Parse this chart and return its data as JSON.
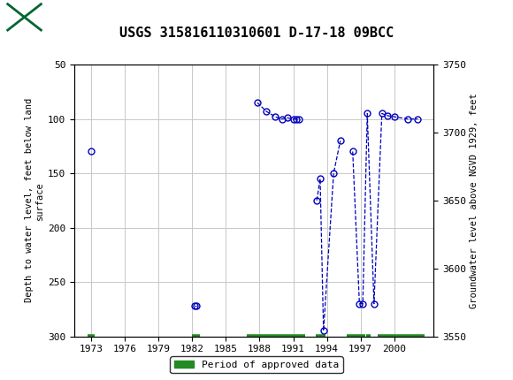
{
  "title": "USGS 315816110310601 D-17-18 09BCC",
  "ylabel_left": "Depth to water level, feet below land\nsurface",
  "ylabel_right": "Groundwater level above NGVD 1929, feet",
  "ylim_left": [
    50,
    300
  ],
  "ylim_right": [
    3550,
    3750
  ],
  "xlim": [
    1971.5,
    2003.5
  ],
  "xticks": [
    1973,
    1976,
    1979,
    1982,
    1985,
    1988,
    1991,
    1994,
    1997,
    2000
  ],
  "yticks_left": [
    50,
    100,
    150,
    200,
    250,
    300
  ],
  "yticks_right": [
    3550,
    3600,
    3650,
    3700,
    3750
  ],
  "segments": [
    [
      [
        1973.0
      ],
      [
        130
      ]
    ],
    [
      [
        1982.2,
        1982.4
      ],
      [
        272,
        272
      ]
    ],
    [
      [
        1987.8,
        1988.6,
        1989.4,
        1990.0,
        1990.5,
        1991.0,
        1991.3,
        1991.5
      ],
      [
        85,
        93,
        98,
        100,
        99,
        100,
        100,
        100
      ]
    ],
    [
      [
        1993.1,
        1993.4,
        1993.7
      ],
      [
        175,
        155,
        295
      ]
    ],
    [
      [
        1993.7,
        1994.6,
        1995.2
      ],
      [
        295,
        150,
        120
      ]
    ],
    [
      [
        1996.3,
        1996.9,
        1997.2
      ],
      [
        130,
        270,
        270
      ]
    ],
    [
      [
        1997.2,
        1997.6,
        1998.2,
        1998.9,
        1999.4,
        2000.0,
        2001.2,
        2002.1
      ],
      [
        270,
        95,
        270,
        95,
        97,
        98,
        100,
        100
      ]
    ]
  ],
  "isolated_points": [
    [
      1973.0,
      130
    ],
    [
      1982.2,
      272
    ],
    [
      1982.4,
      272
    ],
    [
      1987.8,
      85
    ],
    [
      1988.6,
      93
    ],
    [
      1989.4,
      98
    ],
    [
      1990.0,
      100
    ],
    [
      1990.5,
      99
    ],
    [
      1991.0,
      100
    ],
    [
      1991.3,
      100
    ],
    [
      1991.5,
      100
    ],
    [
      1993.1,
      175
    ],
    [
      1993.4,
      155
    ],
    [
      1993.7,
      295
    ],
    [
      1994.6,
      150
    ],
    [
      1995.2,
      120
    ],
    [
      1996.3,
      130
    ],
    [
      1996.9,
      270
    ],
    [
      1997.2,
      270
    ],
    [
      1997.6,
      95
    ],
    [
      1998.2,
      270
    ],
    [
      1998.9,
      95
    ],
    [
      1999.4,
      97
    ],
    [
      2000.0,
      98
    ],
    [
      2001.2,
      100
    ],
    [
      2002.1,
      100
    ]
  ],
  "line_segments_x": [
    [
      1982.2,
      1982.4
    ],
    [
      1987.8,
      1988.6,
      1989.4,
      1990.0,
      1990.5,
      1991.0,
      1991.3,
      1991.5
    ],
    [
      1993.1,
      1993.4,
      1993.7,
      1994.6,
      1995.2
    ],
    [
      1996.3,
      1996.9,
      1997.2,
      1997.6,
      1998.2,
      1998.9,
      1999.4,
      2000.0,
      2001.2,
      2002.1
    ]
  ],
  "line_segments_y": [
    [
      272,
      272
    ],
    [
      85,
      93,
      98,
      100,
      99,
      100,
      100,
      100
    ],
    [
      175,
      155,
      295,
      150,
      120
    ],
    [
      130,
      270,
      270,
      95,
      270,
      95,
      97,
      98,
      100,
      100
    ]
  ],
  "line_color": "#0000BB",
  "marker_color": "#0000BB",
  "marker_size": 5,
  "approved_periods_x": [
    [
      1972.7,
      1973.3
    ],
    [
      1982.0,
      1982.7
    ],
    [
      1986.9,
      1992.1
    ],
    [
      1993.0,
      1993.9
    ],
    [
      1995.8,
      1997.4
    ],
    [
      1997.5,
      1997.9
    ],
    [
      1998.5,
      2002.7
    ]
  ],
  "approved_y": 300,
  "approved_color": "#228B22",
  "background_color": "#ffffff",
  "header_color": "#006633",
  "grid_color": "#c8c8c8",
  "title_fontsize": 11,
  "axis_fontsize": 8
}
